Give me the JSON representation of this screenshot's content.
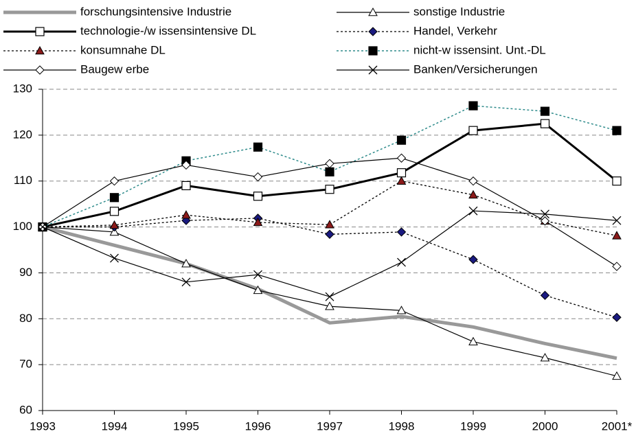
{
  "chart_data": {
    "type": "line",
    "categories": [
      "1993",
      "1994",
      "1995",
      "1996",
      "1997",
      "1998",
      "1999",
      "2000",
      "2001*"
    ],
    "ylim": [
      60,
      130
    ],
    "yticks": [
      60,
      70,
      80,
      90,
      100,
      110,
      120,
      130
    ],
    "grid": true,
    "series": [
      {
        "name": "forschungsintensive Industrie",
        "color": "#999999",
        "width": 5,
        "dash": "none",
        "marker": "none",
        "values": [
          100,
          96,
          92,
          86.5,
          79.1,
          80.5,
          78.2,
          74.6,
          71.4
        ]
      },
      {
        "name": "sonstige Industrie",
        "color": "#000000",
        "width": 1.2,
        "dash": "none",
        "marker": "triangle-open",
        "values": [
          100,
          98.9,
          92,
          86.2,
          82.7,
          81.8,
          75,
          71.5,
          67.5
        ]
      },
      {
        "name": "technologie-/w issensintensive DL",
        "color": "#000000",
        "width": 3,
        "dash": "none",
        "marker": "square-open",
        "values": [
          100,
          103.4,
          109,
          106.7,
          108.2,
          111.8,
          121,
          122.5,
          110
        ]
      },
      {
        "name": "Handel, Verkehr",
        "color": "#000000",
        "width": 1.3,
        "dash": "3,3",
        "marker": "diamond-navy",
        "values": [
          100,
          100,
          101.4,
          101.9,
          98.4,
          98.9,
          92.9,
          85.1,
          80.3
        ]
      },
      {
        "name": "konsumnahe DL",
        "color": "#000000",
        "width": 1.3,
        "dash": "3,3",
        "marker": "triangle-darkred",
        "values": [
          100,
          100.4,
          102.6,
          101,
          100.5,
          110,
          107,
          101.3,
          98.1
        ]
      },
      {
        "name": "nicht-w issensint. Unt.-DL",
        "color": "#2e8b8b",
        "width": 1.5,
        "dash": "3,3",
        "marker": "square-black",
        "values": [
          100,
          106.4,
          114.4,
          117.4,
          112,
          118.9,
          126.4,
          125.2,
          121
        ]
      },
      {
        "name": "Baugew erbe",
        "color": "#000000",
        "width": 1.2,
        "dash": "none",
        "marker": "diamond-open",
        "values": [
          100,
          110,
          113.5,
          110.9,
          113.8,
          115,
          110,
          101.3,
          91.4
        ]
      },
      {
        "name": "Banken/Versicherungen",
        "color": "#000000",
        "width": 1.2,
        "dash": "none",
        "marker": "cross",
        "values": [
          100,
          93.2,
          88,
          89.6,
          84.8,
          92.3,
          103.5,
          102.8,
          101.4
        ]
      }
    ]
  }
}
